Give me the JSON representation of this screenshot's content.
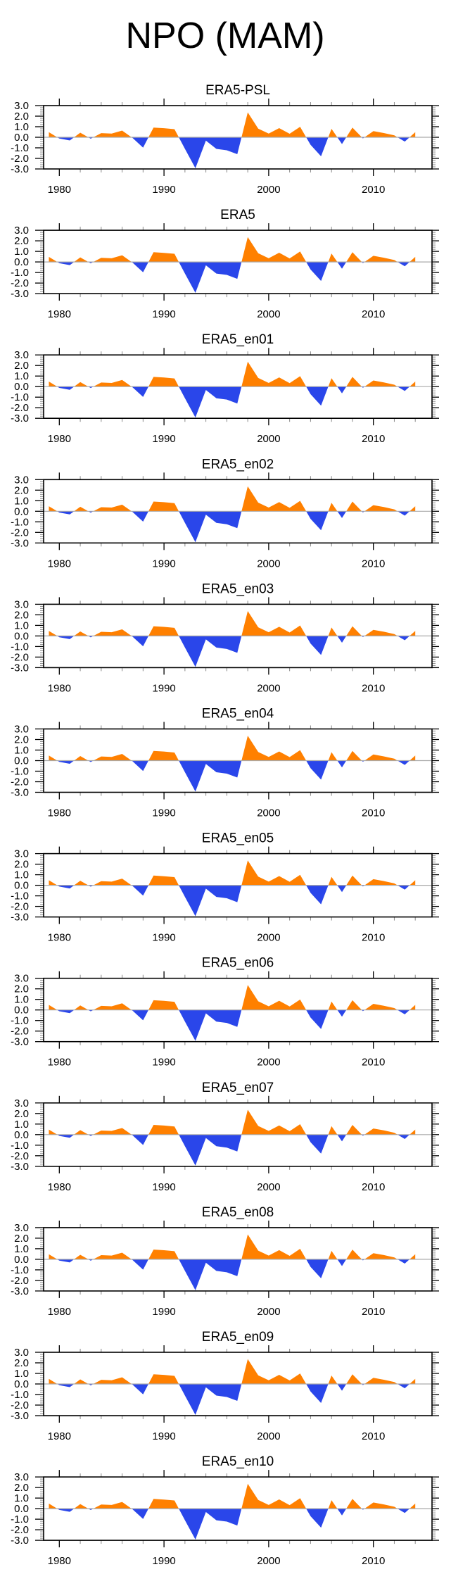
{
  "figure": {
    "title": "NPO (MAM)"
  },
  "colors": {
    "positive": "#ff8000",
    "negative": "#2a46ea",
    "zero_line": "#aaaaaa",
    "axis": "#000000"
  },
  "chart_data": {
    "type": "area",
    "title": "NPO (MAM)",
    "xlabel": "",
    "ylabel": "",
    "xlim": [
      1978.5,
      2015.6
    ],
    "ylim": [
      -3.0,
      3.0
    ],
    "x_major_ticks": [
      1980,
      1990,
      2000,
      2010
    ],
    "x_tick_labels": [
      "1980",
      "1990",
      "2000",
      "2010"
    ],
    "x_minor_step": 2,
    "y_major_ticks": [
      3.0,
      2.0,
      1.0,
      0.0,
      -1.0,
      -2.0,
      -3.0
    ],
    "y_tick_labels": [
      "3.0",
      "2.0",
      "1.0",
      "0.0",
      "-1.0",
      "-2.0",
      "-3.0"
    ],
    "y_minor_step": 0.2,
    "fill_above_zero": "orange",
    "fill_below_zero": "blue",
    "grid": false,
    "legend": "none",
    "x": [
      1979,
      1980,
      1981,
      1982,
      1983,
      1984,
      1985,
      1986,
      1987,
      1988,
      1989,
      1990,
      1991,
      1992,
      1993,
      1994,
      1995,
      1996,
      1997,
      1998,
      1999,
      2000,
      2001,
      2002,
      2003,
      2004,
      2005,
      2006,
      2007,
      2008,
      2009,
      2010,
      2011,
      2012,
      2013,
      2014
    ],
    "panels": [
      {
        "title": "ERA5-PSL",
        "values": [
          0.48,
          -0.12,
          -0.3,
          0.43,
          -0.13,
          0.39,
          0.35,
          0.63,
          -0.07,
          -0.98,
          0.92,
          0.86,
          0.77,
          -1.1,
          -2.93,
          -0.32,
          -1.1,
          -1.23,
          -1.6,
          2.36,
          0.82,
          0.35,
          0.87,
          0.33,
          0.99,
          -0.72,
          -1.8,
          0.8,
          -0.64,
          0.92,
          -0.11,
          0.58,
          0.4,
          0.18,
          -0.41,
          0.48
        ]
      },
      {
        "title": "ERA5",
        "values": [
          0.48,
          -0.12,
          -0.3,
          0.43,
          -0.13,
          0.39,
          0.35,
          0.63,
          -0.07,
          -0.98,
          0.92,
          0.86,
          0.77,
          -1.1,
          -2.93,
          -0.32,
          -1.1,
          -1.23,
          -1.6,
          2.36,
          0.82,
          0.35,
          0.87,
          0.33,
          0.99,
          -0.72,
          -1.8,
          0.8,
          -0.64,
          0.92,
          -0.11,
          0.58,
          0.4,
          0.18,
          -0.41,
          0.48
        ]
      },
      {
        "title": "ERA5_en01",
        "values": [
          0.48,
          -0.12,
          -0.3,
          0.43,
          -0.13,
          0.39,
          0.35,
          0.63,
          -0.07,
          -0.98,
          0.92,
          0.86,
          0.77,
          -1.1,
          -2.93,
          -0.32,
          -1.1,
          -1.23,
          -1.6,
          2.36,
          0.82,
          0.35,
          0.87,
          0.33,
          0.99,
          -0.72,
          -1.8,
          0.8,
          -0.64,
          0.92,
          -0.11,
          0.58,
          0.4,
          0.18,
          -0.41,
          0.48
        ]
      },
      {
        "title": "ERA5_en02",
        "values": [
          0.48,
          -0.12,
          -0.3,
          0.43,
          -0.13,
          0.39,
          0.35,
          0.63,
          -0.07,
          -0.98,
          0.92,
          0.86,
          0.77,
          -1.1,
          -2.93,
          -0.32,
          -1.1,
          -1.23,
          -1.6,
          2.36,
          0.82,
          0.35,
          0.87,
          0.33,
          0.99,
          -0.72,
          -1.8,
          0.8,
          -0.64,
          0.92,
          -0.11,
          0.58,
          0.4,
          0.18,
          -0.41,
          0.48
        ]
      },
      {
        "title": "ERA5_en03",
        "values": [
          0.48,
          -0.12,
          -0.3,
          0.43,
          -0.13,
          0.39,
          0.35,
          0.63,
          -0.07,
          -0.98,
          0.92,
          0.86,
          0.77,
          -1.1,
          -2.93,
          -0.32,
          -1.1,
          -1.23,
          -1.6,
          2.36,
          0.82,
          0.35,
          0.87,
          0.33,
          0.99,
          -0.72,
          -1.8,
          0.8,
          -0.64,
          0.92,
          -0.11,
          0.58,
          0.4,
          0.18,
          -0.41,
          0.48
        ]
      },
      {
        "title": "ERA5_en04",
        "values": [
          0.48,
          -0.12,
          -0.3,
          0.43,
          -0.13,
          0.39,
          0.35,
          0.63,
          -0.07,
          -0.98,
          0.92,
          0.86,
          0.77,
          -1.1,
          -2.93,
          -0.32,
          -1.1,
          -1.23,
          -1.6,
          2.36,
          0.82,
          0.35,
          0.87,
          0.33,
          0.99,
          -0.72,
          -1.8,
          0.8,
          -0.64,
          0.92,
          -0.11,
          0.58,
          0.4,
          0.18,
          -0.41,
          0.48
        ]
      },
      {
        "title": "ERA5_en05",
        "values": [
          0.48,
          -0.12,
          -0.3,
          0.43,
          -0.13,
          0.39,
          0.35,
          0.63,
          -0.07,
          -0.98,
          0.92,
          0.86,
          0.77,
          -1.1,
          -2.93,
          -0.32,
          -1.1,
          -1.23,
          -1.6,
          2.36,
          0.82,
          0.35,
          0.87,
          0.33,
          0.99,
          -0.72,
          -1.8,
          0.8,
          -0.64,
          0.92,
          -0.11,
          0.58,
          0.4,
          0.18,
          -0.41,
          0.48
        ]
      },
      {
        "title": "ERA5_en06",
        "values": [
          0.48,
          -0.12,
          -0.3,
          0.43,
          -0.13,
          0.39,
          0.35,
          0.63,
          -0.07,
          -0.98,
          0.92,
          0.86,
          0.77,
          -1.1,
          -2.93,
          -0.32,
          -1.1,
          -1.23,
          -1.6,
          2.36,
          0.82,
          0.35,
          0.87,
          0.33,
          0.99,
          -0.72,
          -1.8,
          0.8,
          -0.64,
          0.92,
          -0.11,
          0.58,
          0.4,
          0.18,
          -0.41,
          0.48
        ]
      },
      {
        "title": "ERA5_en07",
        "values": [
          0.48,
          -0.12,
          -0.3,
          0.43,
          -0.13,
          0.39,
          0.35,
          0.63,
          -0.07,
          -0.98,
          0.92,
          0.86,
          0.77,
          -1.1,
          -2.93,
          -0.32,
          -1.1,
          -1.23,
          -1.6,
          2.36,
          0.82,
          0.35,
          0.87,
          0.33,
          0.99,
          -0.72,
          -1.8,
          0.8,
          -0.64,
          0.92,
          -0.11,
          0.58,
          0.4,
          0.18,
          -0.41,
          0.48
        ]
      },
      {
        "title": "ERA5_en08",
        "values": [
          0.48,
          -0.12,
          -0.3,
          0.43,
          -0.13,
          0.39,
          0.35,
          0.63,
          -0.07,
          -0.98,
          0.92,
          0.86,
          0.77,
          -1.1,
          -2.93,
          -0.32,
          -1.1,
          -1.23,
          -1.6,
          2.36,
          0.82,
          0.35,
          0.87,
          0.33,
          0.99,
          -0.72,
          -1.8,
          0.8,
          -0.64,
          0.92,
          -0.11,
          0.58,
          0.4,
          0.18,
          -0.41,
          0.48
        ]
      },
      {
        "title": "ERA5_en09",
        "values": [
          0.48,
          -0.12,
          -0.3,
          0.43,
          -0.13,
          0.39,
          0.35,
          0.63,
          -0.07,
          -0.98,
          0.92,
          0.86,
          0.77,
          -1.1,
          -2.93,
          -0.32,
          -1.1,
          -1.23,
          -1.6,
          2.36,
          0.82,
          0.35,
          0.87,
          0.33,
          0.99,
          -0.72,
          -1.8,
          0.8,
          -0.64,
          0.92,
          -0.11,
          0.58,
          0.4,
          0.18,
          -0.41,
          0.48
        ]
      },
      {
        "title": "ERA5_en10",
        "values": [
          0.48,
          -0.12,
          -0.3,
          0.43,
          -0.13,
          0.39,
          0.35,
          0.63,
          -0.07,
          -0.98,
          0.92,
          0.86,
          0.77,
          -1.1,
          -2.93,
          -0.32,
          -1.1,
          -1.23,
          -1.6,
          2.36,
          0.82,
          0.35,
          0.87,
          0.33,
          0.99,
          -0.72,
          -1.8,
          0.8,
          -0.64,
          0.92,
          -0.11,
          0.58,
          0.4,
          0.18,
          -0.41,
          0.48
        ]
      }
    ]
  }
}
